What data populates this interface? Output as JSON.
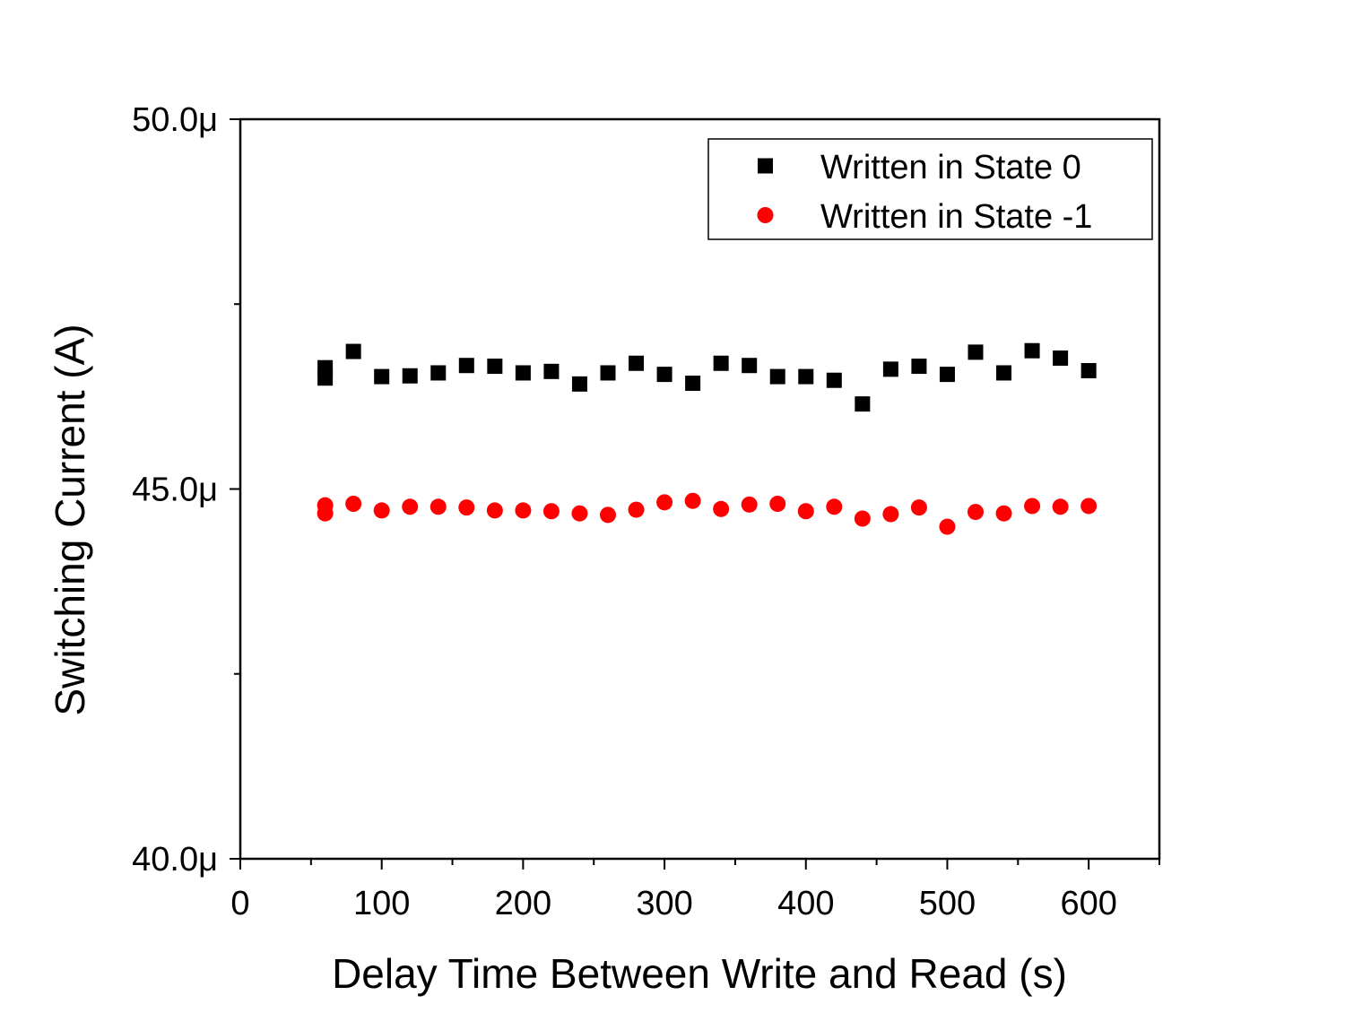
{
  "chart_data": {
    "type": "scatter",
    "title": "",
    "xlabel": "Delay Time Between Write and Read (s)",
    "ylabel": "Switching Current (A)",
    "xlim": [
      0,
      650
    ],
    "ylim": [
      4e-05,
      5e-05
    ],
    "x_ticks": [
      0,
      100,
      200,
      300,
      400,
      500,
      600
    ],
    "x_tick_labels": [
      "0",
      "100",
      "200",
      "300",
      "400",
      "500",
      "600"
    ],
    "y_ticks": [
      4e-05,
      4.5e-05,
      5e-05
    ],
    "y_tick_labels": [
      "40.0μ",
      "45.0μ",
      "50.0μ"
    ],
    "legend_position": "top-right",
    "grid": false,
    "series": [
      {
        "name": "Written in State 0",
        "marker": "square",
        "color": "#000000",
        "x": [
          60,
          60,
          80,
          100,
          120,
          140,
          160,
          180,
          200,
          220,
          240,
          260,
          280,
          300,
          320,
          340,
          360,
          380,
          400,
          420,
          440,
          460,
          480,
          500,
          520,
          540,
          560,
          580,
          600
        ],
        "y": [
          4.664e-05,
          4.65e-05,
          4.686e-05,
          4.652e-05,
          4.653e-05,
          4.657e-05,
          4.667e-05,
          4.666e-05,
          4.657e-05,
          4.659e-05,
          4.642e-05,
          4.657e-05,
          4.67e-05,
          4.655e-05,
          4.643e-05,
          4.67e-05,
          4.667e-05,
          4.652e-05,
          4.652e-05,
          4.647e-05,
          4.615e-05,
          4.662e-05,
          4.666e-05,
          4.655e-05,
          4.685e-05,
          4.657e-05,
          4.687e-05,
          4.677e-05,
          4.66e-05
        ]
      },
      {
        "name": "Written in State -1",
        "marker": "circle",
        "color": "#ff0000",
        "x": [
          60,
          60,
          80,
          100,
          120,
          140,
          160,
          180,
          200,
          220,
          240,
          260,
          280,
          300,
          320,
          340,
          360,
          380,
          400,
          420,
          440,
          460,
          480,
          500,
          520,
          540,
          560,
          580,
          600
        ],
        "y": [
          4.478e-05,
          4.467e-05,
          4.48e-05,
          4.471e-05,
          4.476e-05,
          4.476e-05,
          4.475e-05,
          4.471e-05,
          4.471e-05,
          4.47e-05,
          4.467e-05,
          4.465e-05,
          4.472e-05,
          4.482e-05,
          4.484e-05,
          4.473e-05,
          4.479e-05,
          4.48e-05,
          4.47e-05,
          4.476e-05,
          4.46e-05,
          4.466e-05,
          4.475e-05,
          4.449e-05,
          4.469e-05,
          4.467e-05,
          4.477e-05,
          4.476e-05,
          4.477e-05
        ]
      }
    ]
  }
}
